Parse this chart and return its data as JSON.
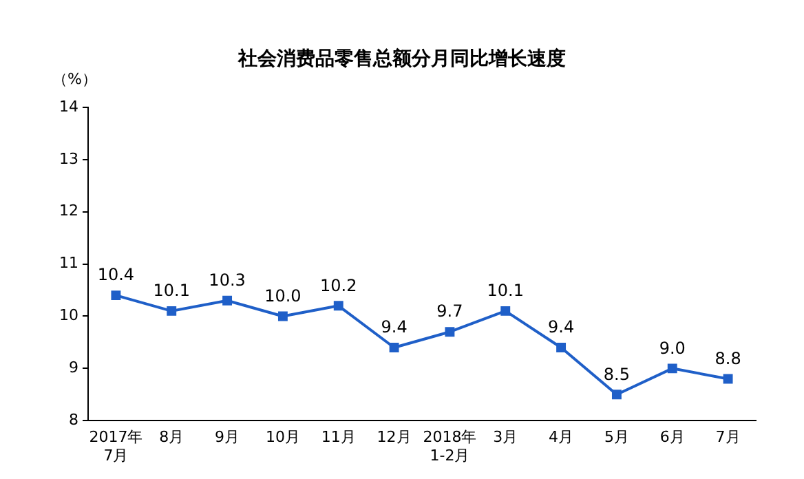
{
  "chart_data": {
    "type": "line",
    "title": "社会消费品零售总额分月同比增长速度",
    "ylabel": "（%）",
    "categories": [
      "2017年\n7月",
      "8月",
      "9月",
      "10月",
      "11月",
      "12月",
      "2018年\n1-2月",
      "3月",
      "4月",
      "5月",
      "6月",
      "7月"
    ],
    "series": [
      {
        "color": "#1f5fc8",
        "values": [
          10.4,
          10.1,
          10.3,
          10.0,
          10.2,
          9.4,
          9.7,
          10.1,
          9.4,
          8.5,
          9.0,
          8.8
        ],
        "value_labels": [
          "10.4",
          "10.1",
          "10.3",
          "10.0",
          "10.2",
          "9.4",
          "9.7",
          "10.1",
          "9.4",
          "8.5",
          "9.0",
          "8.8"
        ]
      }
    ],
    "ylim": [
      8,
      14
    ],
    "yticks": [
      8,
      9,
      10,
      11,
      12,
      13,
      14
    ],
    "grid": false,
    "legend": false,
    "marker": "square",
    "line_style": "solid"
  }
}
